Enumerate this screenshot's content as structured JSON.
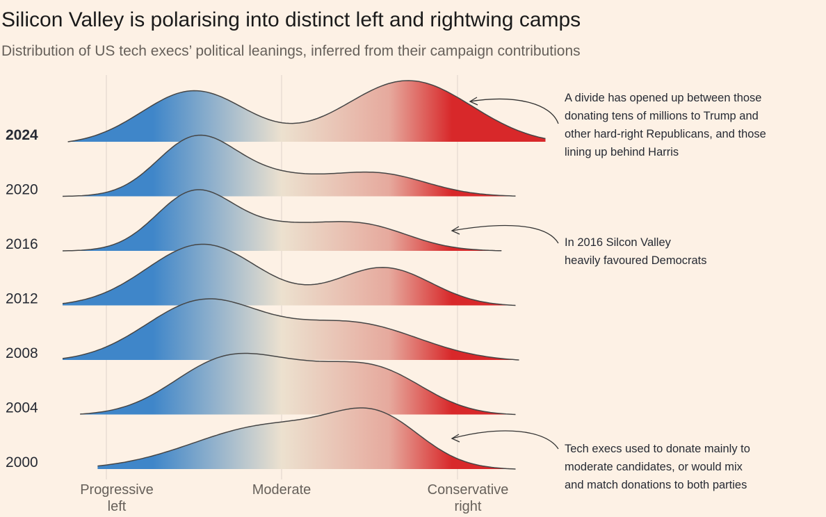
{
  "title": "Silicon Valley is polarising into distinct left and rightwing camps",
  "subtitle": "Distribution of US tech execs’ political leanings, inferred from their campaign contributions",
  "colors": {
    "background": "#fdf1e5",
    "left": "#3f86c9",
    "moderate": "#ece1cf",
    "right": "#d8282a",
    "outline": "#454545",
    "grid": "#e3d9cf"
  },
  "chart_data": {
    "type": "area",
    "variant": "ridgeline",
    "x_tick_labels": [
      {
        "lines": [
          "Progressive",
          "left"
        ]
      },
      {
        "lines": [
          "Moderate"
        ]
      },
      {
        "lines": [
          "Conservative",
          "right"
        ]
      }
    ],
    "x_ticks": [
      -1,
      0,
      1
    ],
    "xlim": [
      -1.25,
      1.25
    ],
    "grid": "vertical",
    "series": [
      {
        "name": "2024",
        "bold": true,
        "range": [
          -1.22,
          1.5
        ],
        "peaks": [
          [
            -0.5,
            0.3,
            0.84
          ],
          [
            0.72,
            0.36,
            1.0
          ]
        ]
      },
      {
        "name": "2020",
        "bold": false,
        "range": [
          -1.25,
          1.33
        ],
        "peaks": [
          [
            -0.5,
            0.22,
            1.0
          ],
          [
            -0.1,
            0.3,
            0.38
          ],
          [
            0.55,
            0.28,
            0.42
          ]
        ]
      },
      {
        "name": "2016",
        "bold": false,
        "range": [
          -1.25,
          1.25
        ],
        "peaks": [
          [
            -0.5,
            0.22,
            1.0
          ],
          [
            -0.05,
            0.25,
            0.34
          ],
          [
            0.45,
            0.27,
            0.45
          ]
        ]
      },
      {
        "name": "2012",
        "bold": false,
        "range": [
          -1.25,
          1.33
        ],
        "peaks": [
          [
            -0.45,
            0.32,
            1.0
          ],
          [
            0.58,
            0.27,
            0.62
          ]
        ]
      },
      {
        "name": "2008",
        "bold": false,
        "range": [
          -1.25,
          1.35
        ],
        "peaks": [
          [
            -0.45,
            0.33,
            1.0
          ],
          [
            0.4,
            0.38,
            0.64
          ]
        ]
      },
      {
        "name": "2004",
        "bold": false,
        "range": [
          -1.15,
          1.33
        ],
        "peaks": [
          [
            -0.32,
            0.3,
            1.0
          ],
          [
            0.1,
            0.25,
            0.4
          ],
          [
            0.53,
            0.28,
            0.82
          ]
        ]
      },
      {
        "name": "2000",
        "bold": false,
        "range": [
          -1.05,
          1.33
        ],
        "peaks": [
          [
            -0.05,
            0.45,
            0.78
          ],
          [
            0.55,
            0.25,
            0.72
          ]
        ]
      }
    ]
  },
  "annotations": [
    {
      "lines": [
        "A divide has opened up between those",
        "donating tens of millions to Trump and",
        "other hard-right Republicans, and those",
        "lining up behind Harris"
      ]
    },
    {
      "lines": [
        "In 2016 Silcon Valley",
        "heavily favoured Democrats"
      ]
    },
    {
      "lines": [
        "Tech execs used to donate mainly to",
        "moderate candidates, or would mix",
        "and match donations to both parties"
      ]
    }
  ]
}
